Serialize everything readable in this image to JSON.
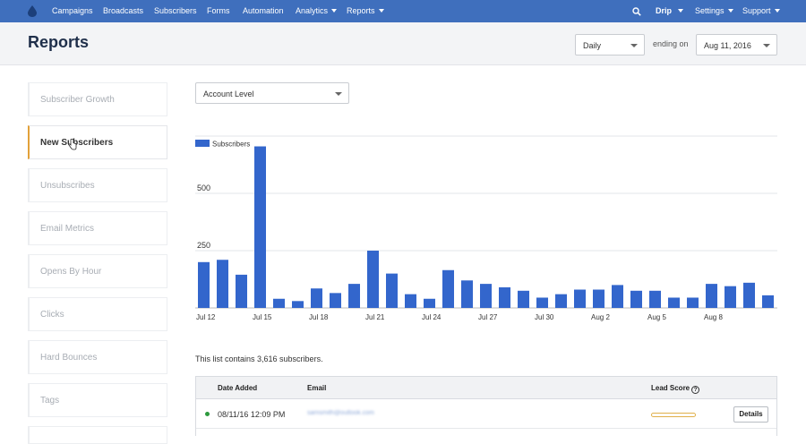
{
  "nav": {
    "items": [
      {
        "label": "Campaigns",
        "dropdown": false
      },
      {
        "label": "Broadcasts",
        "dropdown": false
      },
      {
        "label": "Subscribers",
        "dropdown": false
      },
      {
        "label": "Forms",
        "dropdown": false
      },
      {
        "label": "Automation",
        "dropdown": false
      },
      {
        "label": "Analytics",
        "dropdown": true
      },
      {
        "label": "Reports",
        "dropdown": true
      }
    ],
    "account_label": "Drip",
    "settings_label": "Settings",
    "support_label": "Support",
    "search_icon": "search-icon",
    "logo_icon": "drip-logo-icon"
  },
  "header": {
    "title": "Reports",
    "interval_value": "Daily",
    "ending_on_label": "ending on",
    "date_value": "Aug 11, 2016"
  },
  "sidebar": {
    "items": [
      {
        "label": "Subscriber Growth",
        "active": false
      },
      {
        "label": "New Subscribers",
        "active": true
      },
      {
        "label": "Unsubscribes",
        "active": false
      },
      {
        "label": "Email Metrics",
        "active": false
      },
      {
        "label": "Opens By Hour",
        "active": false
      },
      {
        "label": "Clicks",
        "active": false
      },
      {
        "label": "Hard Bounces",
        "active": false
      },
      {
        "label": "Tags",
        "active": false
      }
    ]
  },
  "main": {
    "level_select_value": "Account Level",
    "count_text": "This list contains 3,616 subscribers.",
    "table": {
      "headers": {
        "date_added": "Date Added",
        "email": "Email",
        "lead_score": "Lead Score"
      },
      "rows": [
        {
          "date_added": "08/11/16 12:09 PM",
          "email": "samsmith@outlook.com",
          "details_label": "Details"
        }
      ]
    }
  },
  "colors": {
    "nav_bg": "#3f6fbd",
    "bar": "#3366cc",
    "active_accent": "#e2a13a",
    "status_dot": "#2e9a3e"
  },
  "chart_data": {
    "type": "bar",
    "legend": [
      "Subscribers"
    ],
    "legend_position": "top-left",
    "grid": true,
    "ylim": [
      0,
      750
    ],
    "y_ticks": [
      250,
      500
    ],
    "x_tick_labels": [
      "Jul 12",
      "Jul 15",
      "Jul 18",
      "Jul 21",
      "Jul 24",
      "Jul 27",
      "Jul 30",
      "Aug 2",
      "Aug 5",
      "Aug 8"
    ],
    "categories": [
      "Jul 12",
      "Jul 13",
      "Jul 14",
      "Jul 15",
      "Jul 16",
      "Jul 17",
      "Jul 18",
      "Jul 19",
      "Jul 20",
      "Jul 21",
      "Jul 22",
      "Jul 23",
      "Jul 24",
      "Jul 25",
      "Jul 26",
      "Jul 27",
      "Jul 28",
      "Jul 29",
      "Jul 30",
      "Jul 31",
      "Aug 1",
      "Aug 2",
      "Aug 3",
      "Aug 4",
      "Aug 5",
      "Aug 6",
      "Aug 7",
      "Aug 8",
      "Aug 9",
      "Aug 10",
      "Aug 11"
    ],
    "series": [
      {
        "name": "Subscribers",
        "values": [
          200,
          210,
          145,
          705,
          40,
          30,
          85,
          65,
          105,
          250,
          150,
          60,
          40,
          165,
          120,
          105,
          90,
          75,
          45,
          60,
          80,
          80,
          100,
          75,
          75,
          45,
          45,
          105,
          95,
          110,
          55
        ]
      }
    ]
  }
}
